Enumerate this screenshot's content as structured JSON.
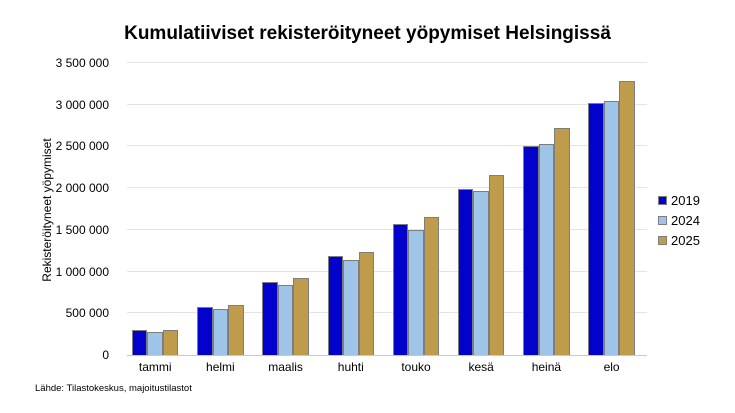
{
  "source": "Lähde: Tilastokeskus, majoitustilastot",
  "chart_data": {
    "type": "bar",
    "title": "Kumulatiiviset rekisteröityneet yöpymiset Helsingissä",
    "xlabel": "",
    "ylabel": "Rekisteröityneet yöpymiset",
    "categories": [
      "tammi",
      "helmi",
      "maalis",
      "huhti",
      "touko",
      "kesä",
      "heinä",
      "elo"
    ],
    "series": [
      {
        "name": "2019",
        "color": "#0202cc",
        "values": [
          300000,
          580000,
          880000,
          1185000,
          1565000,
          1995000,
          2505000,
          3015000
        ]
      },
      {
        "name": "2024",
        "color": "#9ec5e8",
        "values": [
          280000,
          550000,
          840000,
          1135000,
          1500000,
          1970000,
          2530000,
          3050000
        ]
      },
      {
        "name": "2025",
        "color": "#bf9b4c",
        "values": [
          305000,
          605000,
          920000,
          1240000,
          1660000,
          2155000,
          2725000,
          3290000
        ]
      }
    ],
    "ylim": [
      0,
      3500000
    ],
    "y_tick_step": 500000,
    "y_tick_labels": [
      "0",
      "500 000",
      "1 000 000",
      "1 500 000",
      "2 000 000",
      "2 500 000",
      "3 000 000",
      "3 500 000"
    ],
    "grid": true,
    "legend_position": "right"
  }
}
